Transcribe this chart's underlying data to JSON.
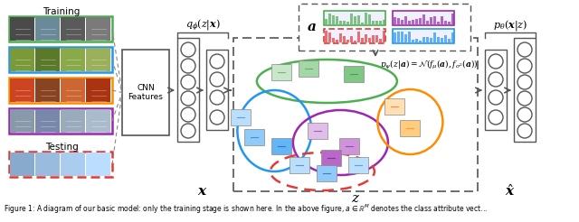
{
  "bg_color": "#ffffff",
  "training_label": "Training",
  "testing_label": "Testing",
  "cnn_label": "CNN\nFeatures",
  "encoder_label": "$q_\\phi(z|\\boldsymbol{x})$",
  "decoder_label": "$p_\\theta(\\boldsymbol{x}|z)$",
  "prior_label": "$p_\\psi(z|\\boldsymbol{a})=\\mathcal{N}(f_\\mu(\\boldsymbol{a}), f_{\\sigma^2}(\\boldsymbol{a}))$",
  "attr_label": "$\\boldsymbol{a}$",
  "x_label": "$\\boldsymbol{x}$",
  "z_label": "$z$",
  "xhat_label": "$\\hat{\\boldsymbol{x}}$",
  "caption": "Figure 1: A diagram of our basic model: only the training stage is shown here. In the above figure, $a \\in \\mathbb{R}^M$ denotes the class attribute vect...",
  "img_box_colors": [
    "#4CAF50",
    "#2196F3",
    "#FF8C00",
    "#9c27b0"
  ],
  "img_box_styles": [
    "solid",
    "solid",
    "solid",
    "solid"
  ],
  "test_box_color": "#e53935",
  "test_box_style": "dashed",
  "attr_bar_colors": [
    "#4CAF50",
    "#9c27b0",
    "#e53935",
    "#2196F3",
    "#FF8C00"
  ],
  "ellipse_colors": [
    "#4CAF50",
    "#2196F3",
    "#9c27b0",
    "#FF8C00"
  ],
  "ellipse_dashed_color": "#e53935",
  "node_edge_color": "#555555",
  "arrow_color": "#555555",
  "box_edge_color": "#555555"
}
